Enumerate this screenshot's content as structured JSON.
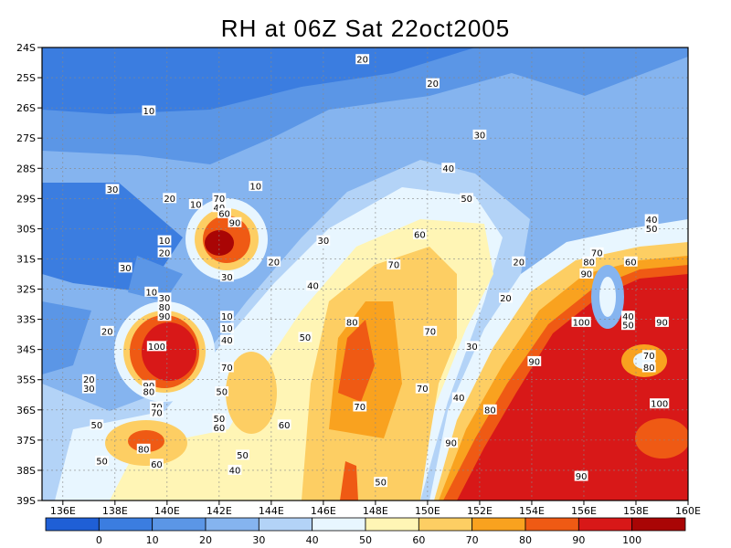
{
  "title": "RH at 06Z Sat 22oct2005",
  "chart_data": {
    "type": "heatmap",
    "title": "RH at 06Z Sat 22oct2005",
    "x_ticks": [
      "136E",
      "138E",
      "140E",
      "142E",
      "144E",
      "146E",
      "148E",
      "150E",
      "152E",
      "154E",
      "156E",
      "158E",
      "160E"
    ],
    "x_values": [
      136,
      138,
      140,
      142,
      144,
      146,
      148,
      150,
      152,
      154,
      156,
      158,
      160
    ],
    "y_ticks": [
      "24S",
      "25S",
      "26S",
      "27S",
      "28S",
      "29S",
      "30S",
      "31S",
      "32S",
      "33S",
      "34S",
      "35S",
      "36S",
      "37S",
      "38S",
      "39S"
    ],
    "y_values": [
      -24,
      -25,
      -26,
      -27,
      -28,
      -29,
      -30,
      -31,
      -32,
      -33,
      -34,
      -35,
      -36,
      -37,
      -38,
      -39
    ],
    "xlim": [
      135.2,
      160
    ],
    "ylim": [
      -39,
      -24
    ],
    "grid": true,
    "colorbar": {
      "labels": [
        "0",
        "10",
        "20",
        "30",
        "40",
        "50",
        "60",
        "70",
        "80",
        "90",
        "100"
      ],
      "levels": [
        0,
        10,
        20,
        30,
        40,
        50,
        60,
        70,
        80,
        90,
        100
      ],
      "colors": [
        "#1f5fd6",
        "#3b7de0",
        "#5b96e6",
        "#85b4ef",
        "#b3d3f7",
        "#e8f6ff",
        "#fff5b5",
        "#fdce63",
        "#f9a21f",
        "#ef5a14",
        "#d81818",
        "#a90505"
      ]
    },
    "contour_labels": [
      {
        "text": "20",
        "lon": 147.5,
        "lat": -24.4
      },
      {
        "text": "20",
        "lon": 150.2,
        "lat": -25.2
      },
      {
        "text": "10",
        "lon": 139.3,
        "lat": -26.1
      },
      {
        "text": "30",
        "lon": 152.0,
        "lat": -26.9
      },
      {
        "text": "40",
        "lon": 150.8,
        "lat": -28.0
      },
      {
        "text": "30",
        "lon": 137.9,
        "lat": -28.7
      },
      {
        "text": "10",
        "lon": 143.4,
        "lat": -28.6
      },
      {
        "text": "20",
        "lon": 140.1,
        "lat": -29.0
      },
      {
        "text": "10",
        "lon": 141.1,
        "lat": -29.2
      },
      {
        "text": "70",
        "lon": 142.0,
        "lat": -29.0
      },
      {
        "text": "40",
        "lon": 142.0,
        "lat": -29.3
      },
      {
        "text": "60",
        "lon": 142.2,
        "lat": -29.5
      },
      {
        "text": "90",
        "lon": 142.6,
        "lat": -29.8
      },
      {
        "text": "50",
        "lon": 151.5,
        "lat": -29.0
      },
      {
        "text": "40",
        "lon": 158.6,
        "lat": -29.7
      },
      {
        "text": "50",
        "lon": 158.6,
        "lat": -30.0
      },
      {
        "text": "60",
        "lon": 149.7,
        "lat": -30.2
      },
      {
        "text": "10",
        "lon": 139.9,
        "lat": -30.4
      },
      {
        "text": "30",
        "lon": 146.0,
        "lat": -30.4
      },
      {
        "text": "20",
        "lon": 139.9,
        "lat": -30.8
      },
      {
        "text": "70",
        "lon": 156.5,
        "lat": -30.8
      },
      {
        "text": "80",
        "lon": 156.2,
        "lat": -31.1
      },
      {
        "text": "60",
        "lon": 157.8,
        "lat": -31.1
      },
      {
        "text": "20",
        "lon": 153.5,
        "lat": -31.1
      },
      {
        "text": "20",
        "lon": 144.1,
        "lat": -31.1
      },
      {
        "text": "30",
        "lon": 138.4,
        "lat": -31.3
      },
      {
        "text": "70",
        "lon": 148.7,
        "lat": -31.2
      },
      {
        "text": "90",
        "lon": 156.1,
        "lat": -31.5
      },
      {
        "text": "30",
        "lon": 142.3,
        "lat": -31.6
      },
      {
        "text": "40",
        "lon": 145.6,
        "lat": -31.9
      },
      {
        "text": "10",
        "lon": 139.4,
        "lat": -32.1
      },
      {
        "text": "30",
        "lon": 139.9,
        "lat": -32.3
      },
      {
        "text": "20",
        "lon": 153.0,
        "lat": -32.3
      },
      {
        "text": "80",
        "lon": 139.9,
        "lat": -32.6
      },
      {
        "text": "90",
        "lon": 139.9,
        "lat": -32.9
      },
      {
        "text": "10",
        "lon": 142.3,
        "lat": -32.9
      },
      {
        "text": "80",
        "lon": 147.1,
        "lat": -33.1
      },
      {
        "text": "100",
        "lon": 155.9,
        "lat": -33.1
      },
      {
        "text": "40",
        "lon": 157.7,
        "lat": -32.9
      },
      {
        "text": "90",
        "lon": 159.0,
        "lat": -33.1
      },
      {
        "text": "50",
        "lon": 157.7,
        "lat": -33.2
      },
      {
        "text": "20",
        "lon": 137.7,
        "lat": -33.4
      },
      {
        "text": "10",
        "lon": 142.3,
        "lat": -33.3
      },
      {
        "text": "70",
        "lon": 150.1,
        "lat": -33.4
      },
      {
        "text": "40",
        "lon": 142.3,
        "lat": -33.7
      },
      {
        "text": "50",
        "lon": 145.3,
        "lat": -33.6
      },
      {
        "text": "100",
        "lon": 139.6,
        "lat": -33.9
      },
      {
        "text": "30",
        "lon": 151.7,
        "lat": -33.9
      },
      {
        "text": "90",
        "lon": 154.1,
        "lat": -34.4
      },
      {
        "text": "70",
        "lon": 158.5,
        "lat": -34.2
      },
      {
        "text": "80",
        "lon": 158.5,
        "lat": -34.6
      },
      {
        "text": "70",
        "lon": 142.3,
        "lat": -34.6
      },
      {
        "text": "20",
        "lon": 137.0,
        "lat": -35.0
      },
      {
        "text": "30",
        "lon": 137.0,
        "lat": -35.3
      },
      {
        "text": "90",
        "lon": 139.3,
        "lat": -35.2
      },
      {
        "text": "80",
        "lon": 139.3,
        "lat": -35.4
      },
      {
        "text": "50",
        "lon": 142.1,
        "lat": -35.4
      },
      {
        "text": "70",
        "lon": 149.8,
        "lat": -35.3
      },
      {
        "text": "40",
        "lon": 151.2,
        "lat": -35.6
      },
      {
        "text": "100",
        "lon": 158.9,
        "lat": -35.8
      },
      {
        "text": "70",
        "lon": 147.4,
        "lat": -35.9
      },
      {
        "text": "70",
        "lon": 139.6,
        "lat": -35.9
      },
      {
        "text": "70",
        "lon": 139.6,
        "lat": -36.1
      },
      {
        "text": "80",
        "lon": 152.4,
        "lat": -36.0
      },
      {
        "text": "50",
        "lon": 142.0,
        "lat": -36.3
      },
      {
        "text": "60",
        "lon": 142.0,
        "lat": -36.6
      },
      {
        "text": "50",
        "lon": 137.3,
        "lat": -36.5
      },
      {
        "text": "60",
        "lon": 144.5,
        "lat": -36.5
      },
      {
        "text": "90",
        "lon": 150.9,
        "lat": -37.1
      },
      {
        "text": "80",
        "lon": 139.1,
        "lat": -37.3
      },
      {
        "text": "50",
        "lon": 137.5,
        "lat": -37.7
      },
      {
        "text": "60",
        "lon": 139.6,
        "lat": -37.8
      },
      {
        "text": "50",
        "lon": 142.9,
        "lat": -37.5
      },
      {
        "text": "40",
        "lon": 142.6,
        "lat": -38.0
      },
      {
        "text": "90",
        "lon": 155.9,
        "lat": -38.2
      },
      {
        "text": "50",
        "lon": 148.2,
        "lat": -38.4
      }
    ]
  }
}
